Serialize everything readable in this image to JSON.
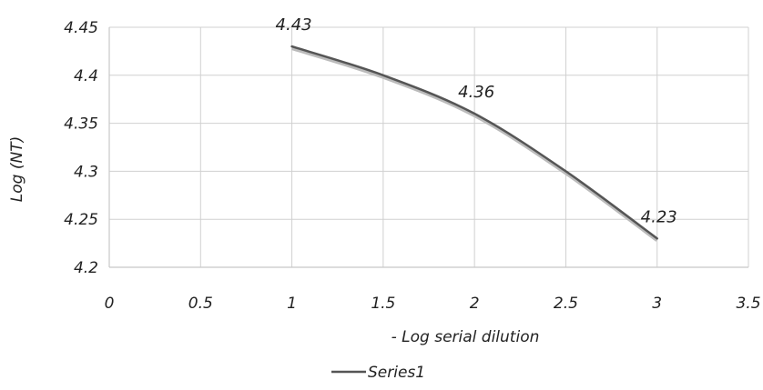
{
  "chart_data": {
    "type": "line",
    "title": "",
    "xlabel": "- Log serial dilution",
    "ylabel": "Log  (NT)",
    "xlim": [
      0,
      3.5
    ],
    "ylim": [
      4.2,
      4.45
    ],
    "x_ticks": [
      "0",
      "0.5",
      "1",
      "1.5",
      "2",
      "2.5",
      "3",
      "3.5"
    ],
    "y_ticks": [
      "4.2",
      "4.25",
      "4.3",
      "4.35",
      "4.4",
      "4.45"
    ],
    "grid": true,
    "legend_position": "bottom",
    "series": [
      {
        "name": "Series1",
        "color": "#555555",
        "smooth": true,
        "x": [
          1,
          1.5,
          2,
          2.5,
          3
        ],
        "y": [
          4.43,
          4.4,
          4.36,
          4.3,
          4.23
        ],
        "data_labels": [
          {
            "x": 1,
            "y": 4.43,
            "text": "4.43"
          },
          {
            "x": 2,
            "y": 4.36,
            "text": "4.36"
          },
          {
            "x": 3,
            "y": 4.23,
            "text": "4.23"
          }
        ]
      }
    ]
  }
}
